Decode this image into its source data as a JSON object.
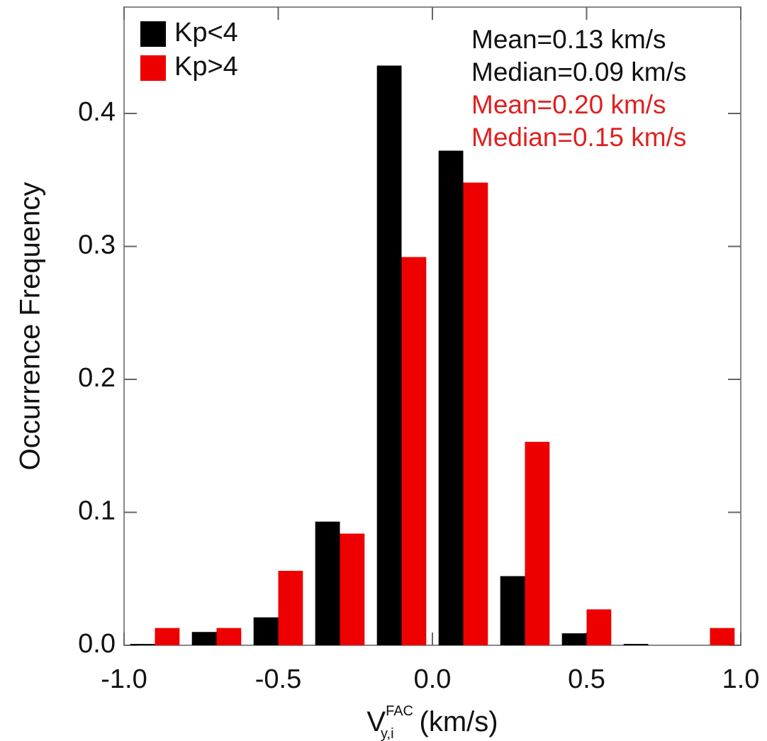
{
  "chart_data": {
    "type": "bar",
    "y_label": "Occurrence Frequency",
    "x_label": {
      "base": "V",
      "superscript": "FAC",
      "subscript": "y,i",
      "unit": "(km/s)"
    },
    "x": [
      -0.9,
      -0.7,
      -0.5,
      -0.3,
      -0.1,
      0.1,
      0.3,
      0.5,
      0.7,
      0.9
    ],
    "bar_width": 0.08,
    "series": [
      {
        "name": "Kp<4",
        "color": "#000000",
        "values": [
          0.001,
          0.01,
          0.021,
          0.093,
          0.436,
          0.372,
          0.052,
          0.009,
          0.001,
          0
        ]
      },
      {
        "name": "Kp>4",
        "color": "#ee0000",
        "values": [
          0.013,
          0.013,
          0.056,
          0.084,
          0.292,
          0.348,
          0.153,
          0.027,
          0,
          0.013
        ]
      }
    ],
    "annotations": [
      {
        "text": "Mean=0.13 km/s",
        "color": "#111111"
      },
      {
        "text": "Median=0.09 km/s",
        "color": "#111111"
      },
      {
        "text": "Mean=0.20 km/s",
        "color": "#e02020"
      },
      {
        "text": "Median=0.15 km/s",
        "color": "#e02020"
      }
    ],
    "xlim": [
      -1,
      1
    ],
    "ylim": [
      0,
      0.48
    ],
    "xticks": [
      {
        "value": -1,
        "label": "-1.0"
      },
      {
        "value": -0.5,
        "label": "-0.5"
      },
      {
        "value": 0,
        "label": "0.0"
      },
      {
        "value": 0.5,
        "label": "0.5"
      },
      {
        "value": 1,
        "label": "1.0"
      }
    ],
    "yticks": [
      {
        "value": 0,
        "label": "0.0"
      },
      0.1,
      0.2,
      0.3,
      0.4
    ],
    "legend": "upper left"
  }
}
